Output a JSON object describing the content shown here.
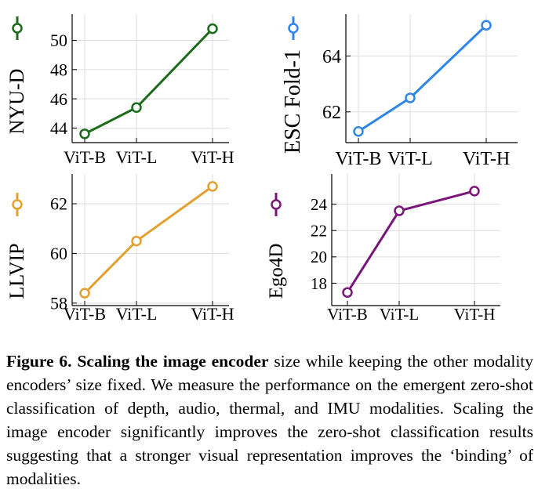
{
  "chart_data": [
    {
      "type": "line",
      "categories": [
        "ViT-B",
        "ViT-L",
        "ViT-H"
      ],
      "series": [
        {
          "name": "NYU-D",
          "values": [
            43.6,
            45.4,
            50.8
          ]
        }
      ],
      "ylabel": "NYU-D",
      "yticks": [
        44,
        46,
        48,
        50
      ],
      "ylim": [
        43.0,
        51.8
      ],
      "color": "#1a6b1a",
      "grid": true
    },
    {
      "type": "line",
      "categories": [
        "ViT-B",
        "ViT-L",
        "ViT-H"
      ],
      "series": [
        {
          "name": "ESC Fold-1",
          "values": [
            61.3,
            62.5,
            65.1
          ]
        }
      ],
      "ylabel": "ESC Fold-1",
      "yticks": [
        62,
        64
      ],
      "ylim": [
        60.9,
        65.5
      ],
      "color": "#2f86e6",
      "grid": true
    },
    {
      "type": "line",
      "categories": [
        "ViT-B",
        "ViT-L",
        "ViT-H"
      ],
      "series": [
        {
          "name": "LLVIP",
          "values": [
            58.4,
            60.5,
            62.7
          ]
        }
      ],
      "ylabel": "LLVIP",
      "yticks": [
        58,
        60,
        62
      ],
      "ylim": [
        57.9,
        63.2
      ],
      "color": "#e3a02f",
      "grid": true
    },
    {
      "type": "line",
      "categories": [
        "ViT-B",
        "ViT-L",
        "ViT-H"
      ],
      "series": [
        {
          "name": "Ego4D",
          "values": [
            17.3,
            23.5,
            25.0
          ]
        }
      ],
      "ylabel": "Ego4D",
      "yticks": [
        18,
        20,
        22,
        24
      ],
      "ylim": [
        16.3,
        26.3
      ],
      "color": "#7a157a",
      "grid": true
    }
  ],
  "caption": {
    "label": "Figure 6.",
    "bold_text": "Scaling the image encoder",
    "text": "size while keeping the other modality encoders’ size fixed.  We measure the performance on the emergent zero-shot classification of depth, audio, thermal, and IMU modalities. Scaling the image encoder significantly improves the zero-shot classification results suggesting that a stronger visual representation improves the ‘binding’ of modalities."
  }
}
